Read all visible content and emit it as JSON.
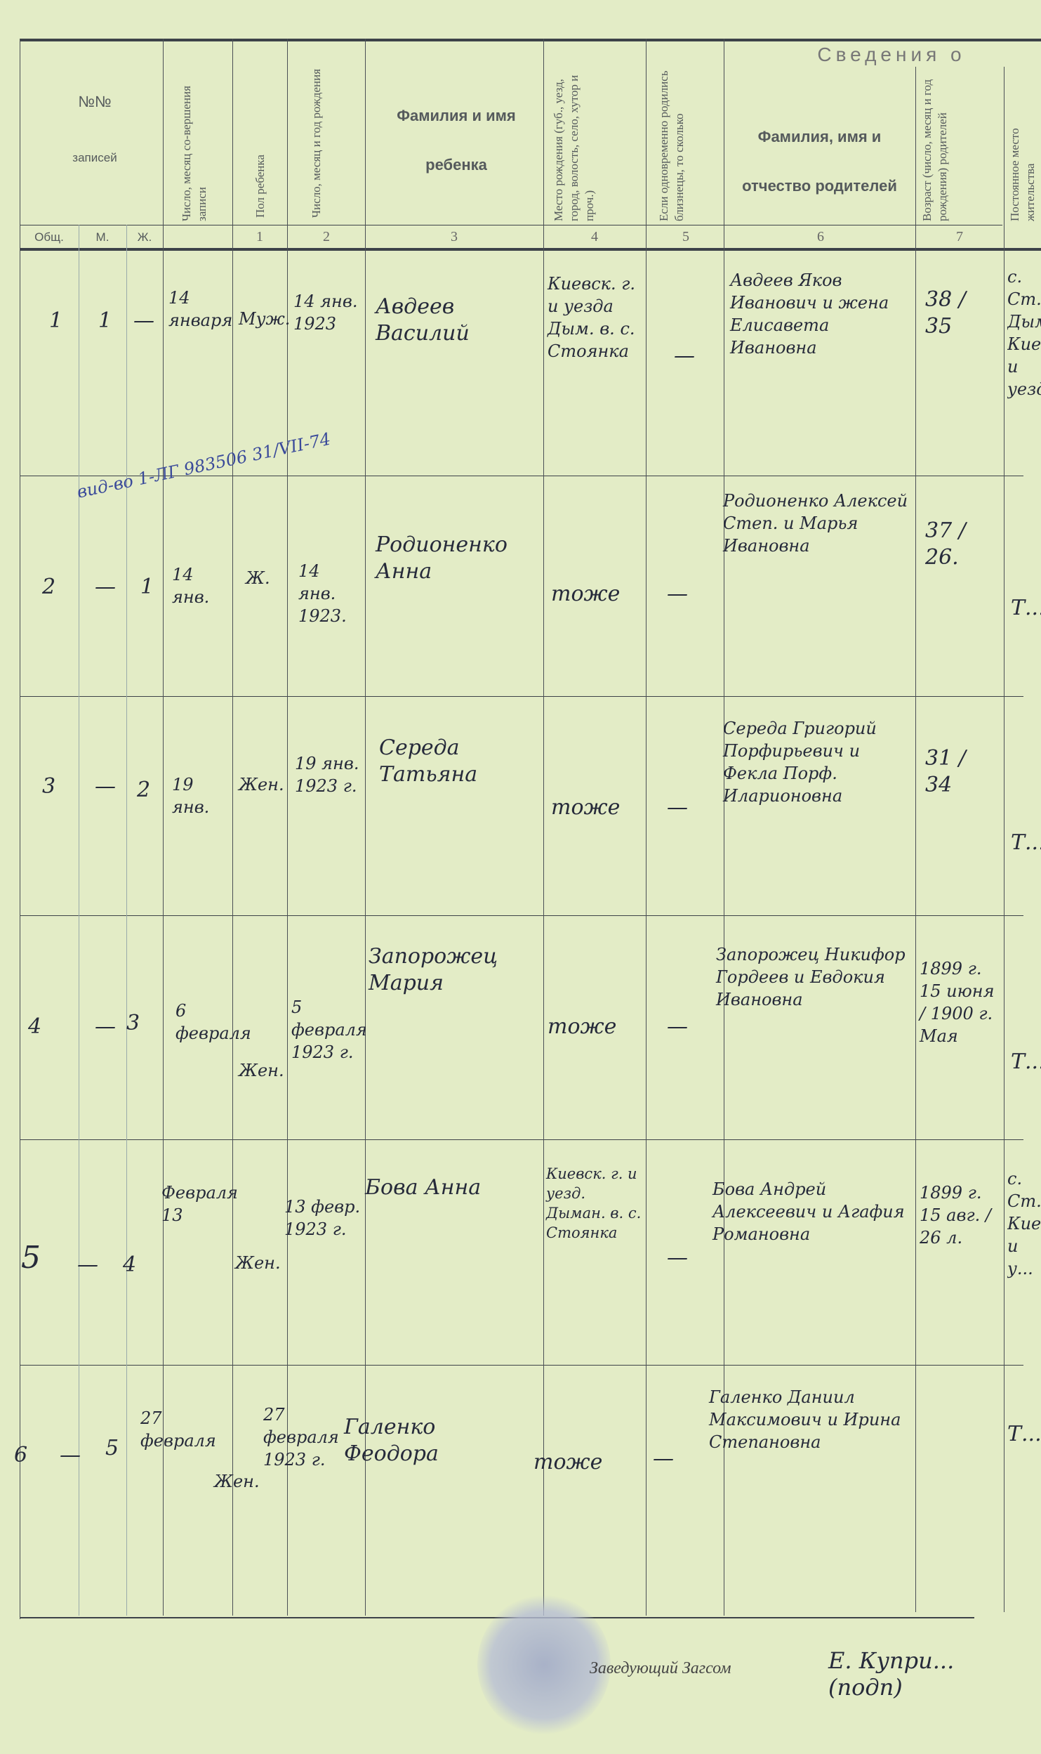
{
  "header": {
    "records_no": "№№",
    "records_label": "записей",
    "sub_total": "Общ.",
    "sub_m": "М.",
    "sub_f": "Ж.",
    "record_date": "Число, месяц со-вершения записи",
    "sex": "Пол ребенка",
    "birth_date": "Число, месяц и год рождения",
    "child_name": "Фамилия и имя ребенка",
    "birth_place": "Место рождения (губ., уезд, город, волость, село, хутор и проч.)",
    "twins": "Если одновременно родились близнецы, то сколько",
    "section": "Сведения о",
    "parents": "Фамилия, имя и отчество родителей",
    "parents_age": "Возраст (число, месяц и год рождения) родителей",
    "residence": "Постоянное место жительства",
    "col_numbers": [
      "1",
      "2",
      "3",
      "4",
      "5",
      "6",
      "7"
    ]
  },
  "rows": [
    {
      "total": "1",
      "m": "1",
      "f": "—",
      "record_date": "14 января",
      "sex": "Муж.",
      "birth_date": "14 янв. 1923",
      "child": "Авдеев Василий",
      "place": "Киевск. г. и уезда Дым. в. с. Стоянка",
      "twins": "—",
      "parents": "Авдеев Яков Иванович и жена Елисавета Ивановна",
      "ages": "38 / 35",
      "residence": "с. Ст... Дым... Киев... и уезда"
    },
    {
      "total": "2",
      "m": "—",
      "f": "1",
      "record_date": "14 янв.",
      "sex": "Ж.",
      "birth_date": "14 янв. 1923.",
      "child": "Родионенко Анна",
      "place": "тоже",
      "twins": "—",
      "parents": "Родионенко Алексей Степ. и Марья Ивановна",
      "ages": "37 / 26.",
      "residence": "Т...",
      "note": "вид-во 1-ЛГ 983506 31/VII-74"
    },
    {
      "total": "3",
      "m": "—",
      "f": "2",
      "record_date": "19 янв.",
      "sex": "Жен.",
      "birth_date": "19 янв. 1923 г.",
      "child": "Середа Татьяна",
      "place": "тоже",
      "twins": "—",
      "parents": "Середа Григорий Порфирьевич и Фекла Порф. Иларионовна",
      "ages": "31 / 34",
      "residence": "Т..."
    },
    {
      "total": "4",
      "m": "—",
      "f": "3",
      "record_date": "6 февраля",
      "sex": "Жен.",
      "birth_date": "5 февраля 1923 г.",
      "child": "Запорожец Мария",
      "place": "тоже",
      "twins": "—",
      "parents": "Запорожец Никифор Гордеев и Евдокия Ивановна",
      "ages": "1899 г. 15 июня / 1900 г. Мая",
      "residence": "Т..."
    },
    {
      "total": "5",
      "m": "—",
      "f": "4",
      "record_date": "Февраля 13",
      "sex": "Жен.",
      "birth_date": "13 февр. 1923 г.",
      "child": "Бова Анна",
      "place": "Киевск. г. и уезд. Дыман. в. с. Стоянка",
      "twins": "—",
      "parents": "Бова Андрей Алексеевич и Агафия Романовна",
      "ages": "1899 г. 15 авг. / 26 л.",
      "residence": "с. Ст... Киев... и у..."
    },
    {
      "total": "6",
      "m": "—",
      "f": "5",
      "record_date": "27 февраля",
      "sex": "Жен.",
      "birth_date": "27 февраля 1923 г.",
      "child": "Галенко Феодора",
      "place": "тоже",
      "twins": "—",
      "parents": "Галенко Даниил Максимович и Ирина Степановна",
      "ages": "",
      "residence": "Т..."
    }
  ],
  "footer": {
    "head_label": "Заведующий Загсом",
    "signature": "Е. Купри... (подп)"
  }
}
